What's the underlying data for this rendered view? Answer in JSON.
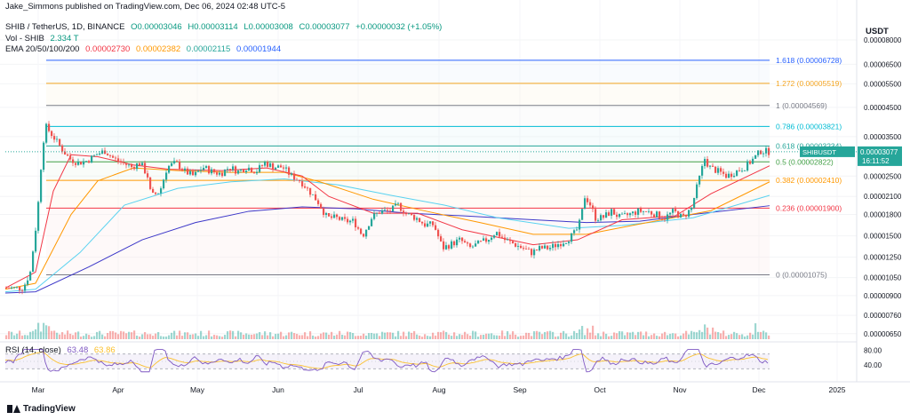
{
  "header": {
    "published": "Jake_Simmons published on TradingView.com, Dec 06, 2024 02:48 UTC-5",
    "symbol_line": "SHIB / TetherUS, 1D, BINANCE",
    "ohlc": {
      "open": "O0.00003046",
      "high": "H0.00003114",
      "low": "L0.00003008",
      "close": "C0.00003077",
      "change": "+0.00000032 (+1.05%)"
    },
    "vol_label": "Vol - SHIB",
    "vol_value": "2.334 T",
    "ema_label": "EMA 20/50/100/200",
    "ema_values": [
      "0.00002730",
      "0.00002382",
      "0.00002115",
      "0.00001944"
    ],
    "currency": "USDT"
  },
  "colors": {
    "up": "#26a69a",
    "down": "#ef5350",
    "ema20": "#f23645",
    "ema50": "#ff9800",
    "ema100": "#5ad2f0",
    "ema200": "#3c37c8",
    "rsi_line": "#7e57c2",
    "rsi_ma": "#fbc02d",
    "price_tag": "#26a69a"
  },
  "chart_data": {
    "type": "candlestick",
    "price_axis": {
      "scale": "log",
      "ticks": [
        "0.00008000",
        "0.00006500",
        "0.00005500",
        "0.00004500",
        "0.00003500",
        "0.00002500",
        "0.00002100",
        "0.00001800",
        "0.00001500",
        "0.00001250",
        "0.00001050",
        "0.00000900",
        "0.00000760",
        "0.00000650"
      ],
      "range": [
        6.2e-06,
        8.8e-06
      ]
    },
    "time_axis": {
      "labels": [
        "Mar",
        "Apr",
        "May",
        "Jun",
        "Jul",
        "Aug",
        "Sep",
        "Oct",
        "Nov",
        "Dec",
        "2025"
      ]
    },
    "current_price": {
      "symbol": "SHIBUSDT",
      "value": "0.00003077",
      "countdown": "16:11:52"
    },
    "fib_levels": [
      {
        "label": "1.618 (0.00006728)",
        "value": 6.728e-05,
        "color": "#2962ff"
      },
      {
        "label": "1.272 (0.00005519)",
        "value": 5.519e-05,
        "color": "#f5a623"
      },
      {
        "label": "1 (0.00004569)",
        "value": 4.569e-05,
        "color": "#787b86"
      },
      {
        "label": "0.786 (0.00003821)",
        "value": 3.821e-05,
        "color": "#00bcd4"
      },
      {
        "label": "0.618 (0.00003234)",
        "value": 3.234e-05,
        "color": "#26a69a"
      },
      {
        "label": "0.5 (0.00002822)",
        "value": 2.822e-05,
        "color": "#43a047"
      },
      {
        "label": "0.382 (0.00002410)",
        "value": 2.41e-05,
        "color": "#ff9800"
      },
      {
        "label": "0.236 (0.00001900)",
        "value": 1.9e-05,
        "color": "#f23645"
      },
      {
        "label": "0 (0.00001075)",
        "value": 1.075e-05,
        "color": "#787b86"
      }
    ],
    "price_path": [
      [
        6,
        9.6e-06
      ],
      [
        28,
        9.6e-06
      ],
      [
        36,
        1.1e-05
      ],
      [
        44,
        1.8e-05
      ],
      [
        50,
        3.3e-05
      ],
      [
        54,
        3.8e-05
      ],
      [
        62,
        3.5e-05
      ],
      [
        70,
        3.2e-05
      ],
      [
        80,
        2.9e-05
      ],
      [
        90,
        2.8e-05
      ],
      [
        100,
        2.85e-05
      ],
      [
        110,
        3e-05
      ],
      [
        120,
        3.1e-05
      ],
      [
        130,
        2.9e-05
      ],
      [
        140,
        2.8e-05
      ],
      [
        150,
        2.7e-05
      ],
      [
        160,
        2.8e-05
      ],
      [
        168,
        2.5e-05
      ],
      [
        172,
        2.1e-05
      ],
      [
        182,
        2.2e-05
      ],
      [
        190,
        2.7e-05
      ],
      [
        200,
        2.8e-05
      ],
      [
        210,
        2.6e-05
      ],
      [
        220,
        2.5e-05
      ],
      [
        230,
        2.7e-05
      ],
      [
        240,
        2.6e-05
      ],
      [
        250,
        2.55e-05
      ],
      [
        260,
        2.7e-05
      ],
      [
        270,
        2.6e-05
      ],
      [
        280,
        2.7e-05
      ],
      [
        290,
        2.6e-05
      ],
      [
        300,
        2.8e-05
      ],
      [
        310,
        2.7e-05
      ],
      [
        320,
        2.7e-05
      ],
      [
        330,
        2.5e-05
      ],
      [
        340,
        2.4e-05
      ],
      [
        350,
        2.2e-05
      ],
      [
        360,
        2e-05
      ],
      [
        370,
        1.75e-05
      ],
      [
        380,
        1.75e-05
      ],
      [
        390,
        1.7e-05
      ],
      [
        400,
        1.7e-05
      ],
      [
        410,
        1.5e-05
      ],
      [
        420,
        1.75e-05
      ],
      [
        430,
        1.85e-05
      ],
      [
        440,
        1.85e-05
      ],
      [
        450,
        1.95e-05
      ],
      [
        460,
        1.8e-05
      ],
      [
        470,
        1.75e-05
      ],
      [
        480,
        1.65e-05
      ],
      [
        490,
        1.65e-05
      ],
      [
        500,
        1.35e-05
      ],
      [
        510,
        1.4e-05
      ],
      [
        520,
        1.45e-05
      ],
      [
        530,
        1.35e-05
      ],
      [
        540,
        1.4e-05
      ],
      [
        550,
        1.45e-05
      ],
      [
        560,
        1.55e-05
      ],
      [
        570,
        1.45e-05
      ],
      [
        580,
        1.4e-05
      ],
      [
        590,
        1.35e-05
      ],
      [
        600,
        1.3e-05
      ],
      [
        610,
        1.35e-05
      ],
      [
        620,
        1.35e-05
      ],
      [
        630,
        1.4e-05
      ],
      [
        640,
        1.45e-05
      ],
      [
        650,
        1.55e-05
      ],
      [
        655,
        1.7e-05
      ],
      [
        660,
        2.1e-05
      ],
      [
        665,
        2e-05
      ],
      [
        672,
        1.75e-05
      ],
      [
        680,
        1.75e-05
      ],
      [
        690,
        1.85e-05
      ],
      [
        700,
        1.75e-05
      ],
      [
        710,
        1.8e-05
      ],
      [
        720,
        1.85e-05
      ],
      [
        730,
        1.85e-05
      ],
      [
        740,
        1.8e-05
      ],
      [
        750,
        1.75e-05
      ],
      [
        760,
        1.85e-05
      ],
      [
        770,
        1.75e-05
      ],
      [
        780,
        1.9e-05
      ],
      [
        788,
        2.4e-05
      ],
      [
        795,
        2.9e-05
      ],
      [
        800,
        2.7e-05
      ],
      [
        810,
        2.6e-05
      ],
      [
        820,
        2.5e-05
      ],
      [
        830,
        2.6e-05
      ],
      [
        840,
        2.7e-05
      ],
      [
        850,
        2.9e-05
      ],
      [
        858,
        3.1e-05
      ],
      [
        866,
        3.08e-05
      ]
    ],
    "ema20_path": [
      [
        6,
        9.6e-06
      ],
      [
        40,
        1.1e-05
      ],
      [
        60,
        2.2e-05
      ],
      [
        80,
        3e-05
      ],
      [
        110,
        2.95e-05
      ],
      [
        150,
        2.75e-05
      ],
      [
        190,
        2.65e-05
      ],
      [
        250,
        2.62e-05
      ],
      [
        300,
        2.68e-05
      ],
      [
        340,
        2.5e-05
      ],
      [
        370,
        2.1e-05
      ],
      [
        420,
        1.82e-05
      ],
      [
        470,
        1.82e-05
      ],
      [
        520,
        1.58e-05
      ],
      [
        600,
        1.39e-05
      ],
      [
        650,
        1.45e-05
      ],
      [
        700,
        1.72e-05
      ],
      [
        760,
        1.78e-05
      ],
      [
        800,
        2.15e-05
      ],
      [
        866,
        2.73e-05
      ]
    ],
    "ema50_path": [
      [
        6,
        9.5e-06
      ],
      [
        40,
        1e-05
      ],
      [
        80,
        1.8e-05
      ],
      [
        110,
        2.4e-05
      ],
      [
        150,
        2.68e-05
      ],
      [
        200,
        2.62e-05
      ],
      [
        260,
        2.58e-05
      ],
      [
        320,
        2.58e-05
      ],
      [
        360,
        2.38e-05
      ],
      [
        420,
        2.05e-05
      ],
      [
        480,
        1.85e-05
      ],
      [
        540,
        1.68e-05
      ],
      [
        600,
        1.52e-05
      ],
      [
        660,
        1.52e-05
      ],
      [
        720,
        1.66e-05
      ],
      [
        800,
        1.86e-05
      ],
      [
        866,
        2.38e-05
      ]
    ],
    "ema100_path": [
      [
        6,
        9.3e-06
      ],
      [
        40,
        9.5e-06
      ],
      [
        90,
        1.3e-05
      ],
      [
        140,
        1.95e-05
      ],
      [
        200,
        2.25e-05
      ],
      [
        260,
        2.38e-05
      ],
      [
        320,
        2.44e-05
      ],
      [
        380,
        2.32e-05
      ],
      [
        440,
        2.12e-05
      ],
      [
        500,
        1.95e-05
      ],
      [
        560,
        1.75e-05
      ],
      [
        640,
        1.6e-05
      ],
      [
        700,
        1.64e-05
      ],
      [
        780,
        1.75e-05
      ],
      [
        866,
        2.12e-05
      ]
    ],
    "ema200_path": [
      [
        6,
        9.2e-06
      ],
      [
        40,
        9.3e-06
      ],
      [
        100,
        1.15e-05
      ],
      [
        160,
        1.45e-05
      ],
      [
        220,
        1.68e-05
      ],
      [
        280,
        1.85e-05
      ],
      [
        340,
        1.92e-05
      ],
      [
        400,
        1.89e-05
      ],
      [
        460,
        1.82e-05
      ],
      [
        520,
        1.78e-05
      ],
      [
        600,
        1.72e-05
      ],
      [
        660,
        1.68e-05
      ],
      [
        720,
        1.7e-05
      ],
      [
        780,
        1.8e-05
      ],
      [
        866,
        1.94e-05
      ]
    ],
    "volume_panel": {
      "label": "Vol - SHIB",
      "value": "2.334 T"
    },
    "rsi": {
      "label": "RSI (14, close)",
      "value": "63.48",
      "ma_value": "63.86",
      "ticks": [
        "80.00",
        "40.00"
      ],
      "range": [
        0,
        100
      ],
      "band": [
        30,
        70
      ]
    }
  }
}
